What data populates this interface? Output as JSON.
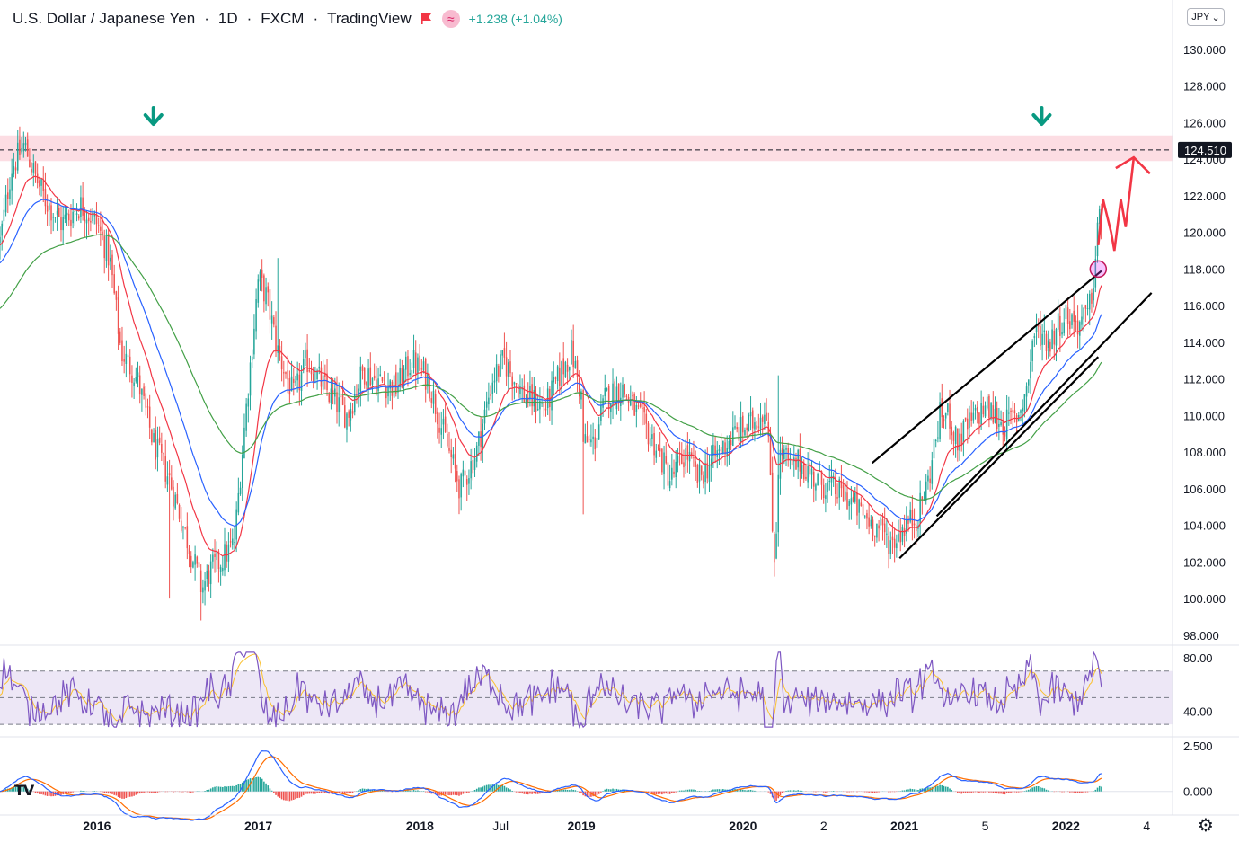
{
  "legend": {
    "symbol": "U.S. Dollar / Japanese Yen",
    "interval": "1D",
    "exchange": "FXCM",
    "source": "TradingView",
    "change": "+1.238 (+1.04%)",
    "separator": "·"
  },
  "currency_button": {
    "label": "JPY",
    "icon": "chevron-down-icon"
  },
  "settings_icon": "gear-icon",
  "logo_icon": "tradingview-logo-icon",
  "chart_data": [
    {
      "type": "candlestick",
      "title": "U.S. Dollar / Japanese Yen · 1D · FXCM",
      "xlabel": "",
      "ylabel": "",
      "ylim": [
        97.5,
        132.7
      ],
      "x_tick_labels": [
        "2016",
        "2017",
        "2018",
        "Jul",
        "2019",
        "2020",
        "2",
        "2021",
        "5",
        "2022",
        "4"
      ],
      "y_tick_labels": [
        "98.000",
        "100.000",
        "102.000",
        "104.000",
        "106.000",
        "108.000",
        "110.000",
        "112.000",
        "114.000",
        "116.000",
        "118.000",
        "120.000",
        "122.000",
        "124.000",
        "126.000",
        "128.000",
        "130.000"
      ],
      "last_price_label": "124.510",
      "resistance_zone": {
        "low": 123.9,
        "high": 125.3,
        "color": "#fcdde3"
      },
      "resistance_line": 124.51,
      "price_path": {
        "x": [
          2015.4,
          2015.47,
          2015.55,
          2015.62,
          2015.68,
          2015.78,
          2015.9,
          2016.0,
          2016.08,
          2016.15,
          2016.25,
          2016.35,
          2016.45,
          2016.55,
          2016.65,
          2016.7,
          2016.76,
          2016.85,
          2016.92,
          2017.0,
          2017.05,
          2017.12,
          2017.22,
          2017.3,
          2017.45,
          2017.55,
          2017.65,
          2017.72,
          2017.85,
          2017.95,
          2018.05,
          2018.18,
          2018.25,
          2018.35,
          2018.45,
          2018.52,
          2018.65,
          2018.78,
          2018.88,
          2018.94,
          2019.0,
          2019.01,
          2019.08,
          2019.15,
          2019.25,
          2019.35,
          2019.45,
          2019.55,
          2019.65,
          2019.72,
          2019.85,
          2019.95,
          2020.05,
          2020.15,
          2020.18,
          2020.2,
          2020.22,
          2020.25,
          2020.3,
          2020.35,
          2020.45,
          2020.55,
          2020.65,
          2020.75,
          2020.85,
          2020.92,
          2021.0,
          2021.08,
          2021.15,
          2021.22,
          2021.28,
          2021.32,
          2021.4,
          2021.5,
          2021.55,
          2021.62,
          2021.7,
          2021.76,
          2021.8,
          2021.85,
          2021.9,
          2021.95,
          2022.0,
          2022.08,
          2022.14,
          2022.18,
          2022.2,
          2022.22
        ],
        "close": [
          119.5,
          123.5,
          124.8,
          123.0,
          121.8,
          120.5,
          121.5,
          120.5,
          118.5,
          113.5,
          112.0,
          108.5,
          106.5,
          103.5,
          100.5,
          101.5,
          102.0,
          103.0,
          110.0,
          117.5,
          116.5,
          113.5,
          111.0,
          113.0,
          111.0,
          110.0,
          112.5,
          112.0,
          111.5,
          113.0,
          112.0,
          108.0,
          106.0,
          108.0,
          112.0,
          113.0,
          111.0,
          110.5,
          112.5,
          113.5,
          111.0,
          108.5,
          108.5,
          111.0,
          111.5,
          110.0,
          108.5,
          106.5,
          108.0,
          106.5,
          108.0,
          109.0,
          109.5,
          110.5,
          104.0,
          102.0,
          107.5,
          108.0,
          107.0,
          107.5,
          106.5,
          106.0,
          105.5,
          104.5,
          103.8,
          103.0,
          104.0,
          104.5,
          106.5,
          110.0,
          110.0,
          108.5,
          109.5,
          110.5,
          110.0,
          109.5,
          110.0,
          111.5,
          114.5,
          114.5,
          114.0,
          115.0,
          115.5,
          115.0,
          115.5,
          118.0,
          121.0,
          120.0
        ]
      },
      "annotations": {
        "channel_upper": {
          "from": [
            2020.8,
            107.4
          ],
          "to": [
            2022.22,
            117.9
          ]
        },
        "channel_lower_1": {
          "from": [
            2020.97,
            102.2
          ],
          "to": [
            2022.2,
            113.2
          ]
        },
        "channel_lower_2": {
          "from": [
            2021.2,
            104.5
          ],
          "to": [
            2022.53,
            116.7
          ]
        },
        "circle_marker": [
          2022.2,
          118.0
        ],
        "down_arrows_x": [
          2016.35,
          2021.85
        ],
        "projection_path": [
          [
            2022.2,
            119.3
          ],
          [
            2022.23,
            121.8
          ],
          [
            2022.28,
            120.0
          ],
          [
            2022.3,
            119.0
          ],
          [
            2022.34,
            121.8
          ],
          [
            2022.37,
            120.3
          ],
          [
            2022.42,
            124.1
          ]
        ],
        "arrow_color_projection": "#f23645",
        "arrow_color_down": "#089981"
      },
      "moving_averages": [
        {
          "color": "#f23645",
          "smoothing": 0.035
        },
        {
          "color": "#2962ff",
          "smoothing": 0.018
        },
        {
          "color": "#43a047",
          "smoothing": 0.008
        }
      ]
    },
    {
      "type": "line",
      "title": "",
      "y_tick_labels": [
        "80.00",
        "40.00"
      ],
      "ylim": [
        22,
        88
      ],
      "band": [
        30,
        70
      ],
      "midline": 50,
      "line_color": "#7e57c2",
      "signal_color": "#fbc02d",
      "band_color": "#ede7f6"
    },
    {
      "type": "bar",
      "title": "",
      "y_tick_labels": [
        "2.500",
        "0.000"
      ],
      "ylim": [
        -1.2,
        2.9
      ],
      "macd_color": "#2962ff",
      "signal_color": "#ff6d00",
      "hist_pos_color": "#26a69a",
      "hist_neg_color": "#ef5350"
    }
  ],
  "colors": {
    "axis_text": "#131722",
    "axis_line": "#e0e3eb",
    "up_candle": "#26a69a",
    "down_candle": "#ef5350",
    "price_tag_bg": "#131722",
    "price_tag_text": "#ffffff"
  }
}
